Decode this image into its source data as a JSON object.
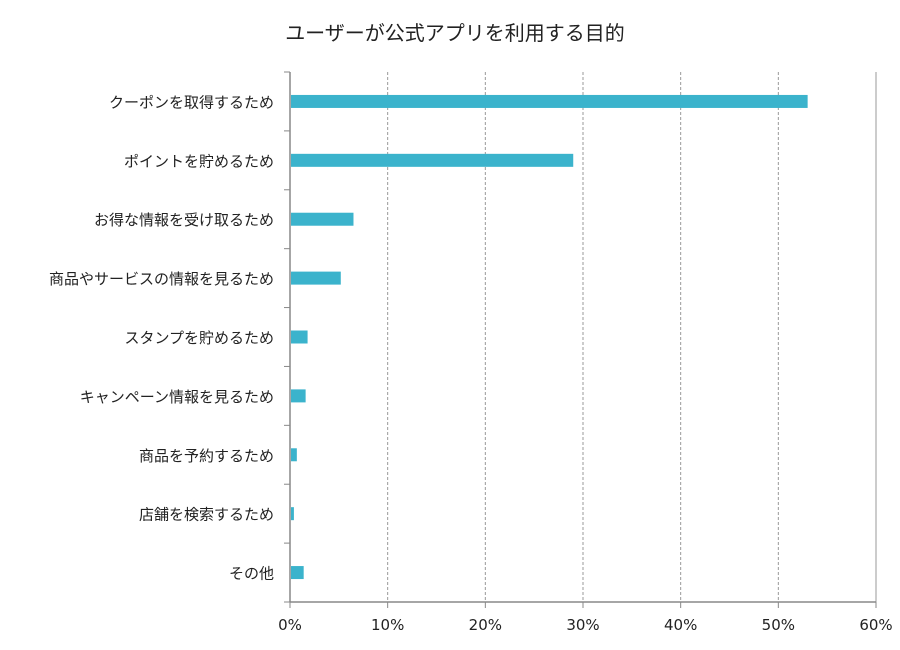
{
  "chart_data": {
    "type": "bar",
    "orientation": "horizontal",
    "title": "ユーザーが公式アプリを利用する目的",
    "categories": [
      "クーポンを取得するため",
      "ポイントを貯めるため",
      "お得な情報を受け取るため",
      "商品やサービスの情報を見るため",
      "スタンプを貯めるため",
      "キャンペーン情報を見るため",
      "商品を予約するため",
      "店舗を検索するため",
      "その他"
    ],
    "values": [
      53,
      29,
      6.5,
      5.2,
      1.8,
      1.6,
      0.7,
      0.4,
      1.4
    ],
    "unit": "%",
    "xlim": [
      0,
      60
    ],
    "xticks": [
      "0%",
      "10%",
      "20%",
      "30%",
      "40%",
      "50%",
      "60%"
    ],
    "xlabel": "",
    "ylabel": "",
    "grid": "vertical dashed",
    "bar_color": "#3bb3cc"
  }
}
